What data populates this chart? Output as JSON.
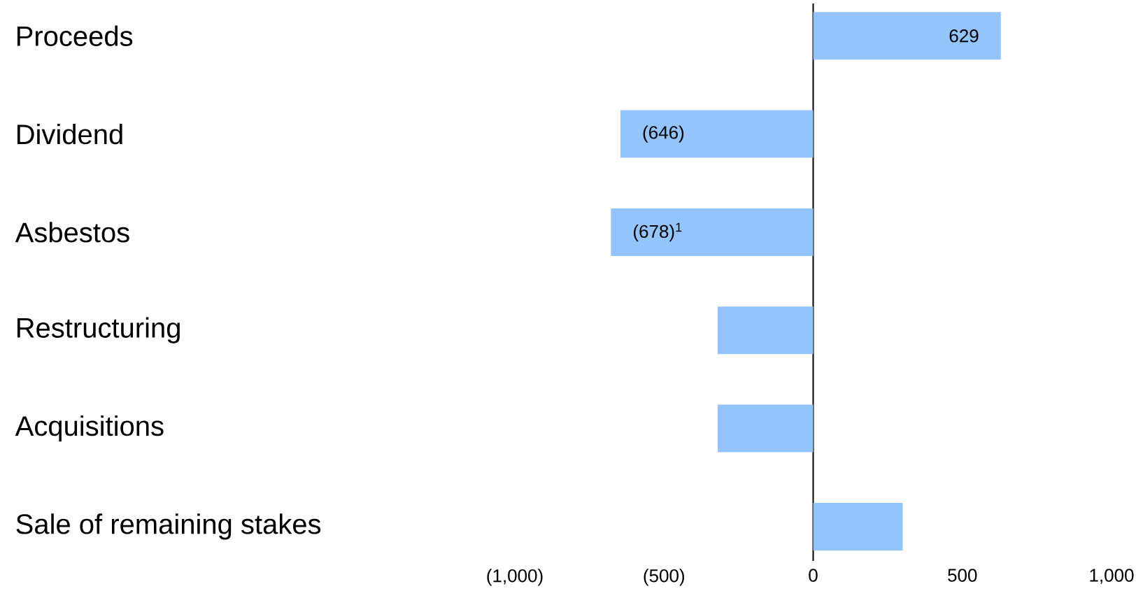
{
  "chart_data": {
    "type": "bar",
    "orientation": "horizontal",
    "categories": [
      "Proceeds",
      "Dividend",
      "Asbestos",
      "Restructuring",
      "Acquisitions",
      "Sale of remaining stakes"
    ],
    "values": [
      629,
      -646,
      -678,
      -320,
      -320,
      300
    ],
    "color": "#94c4fc",
    "value_labels": [
      "629",
      "(646)",
      "(678)$^{1}$",
      null,
      null,
      null
    ],
    "xlim": [
      -1000,
      1000
    ],
    "xticks": [
      {
        "value": -1000,
        "label": "(1,000)"
      },
      {
        "value": -500,
        "label": "(500)"
      },
      0,
      500,
      {
        "value": 1000,
        "label": "1,000"
      }
    ]
  }
}
